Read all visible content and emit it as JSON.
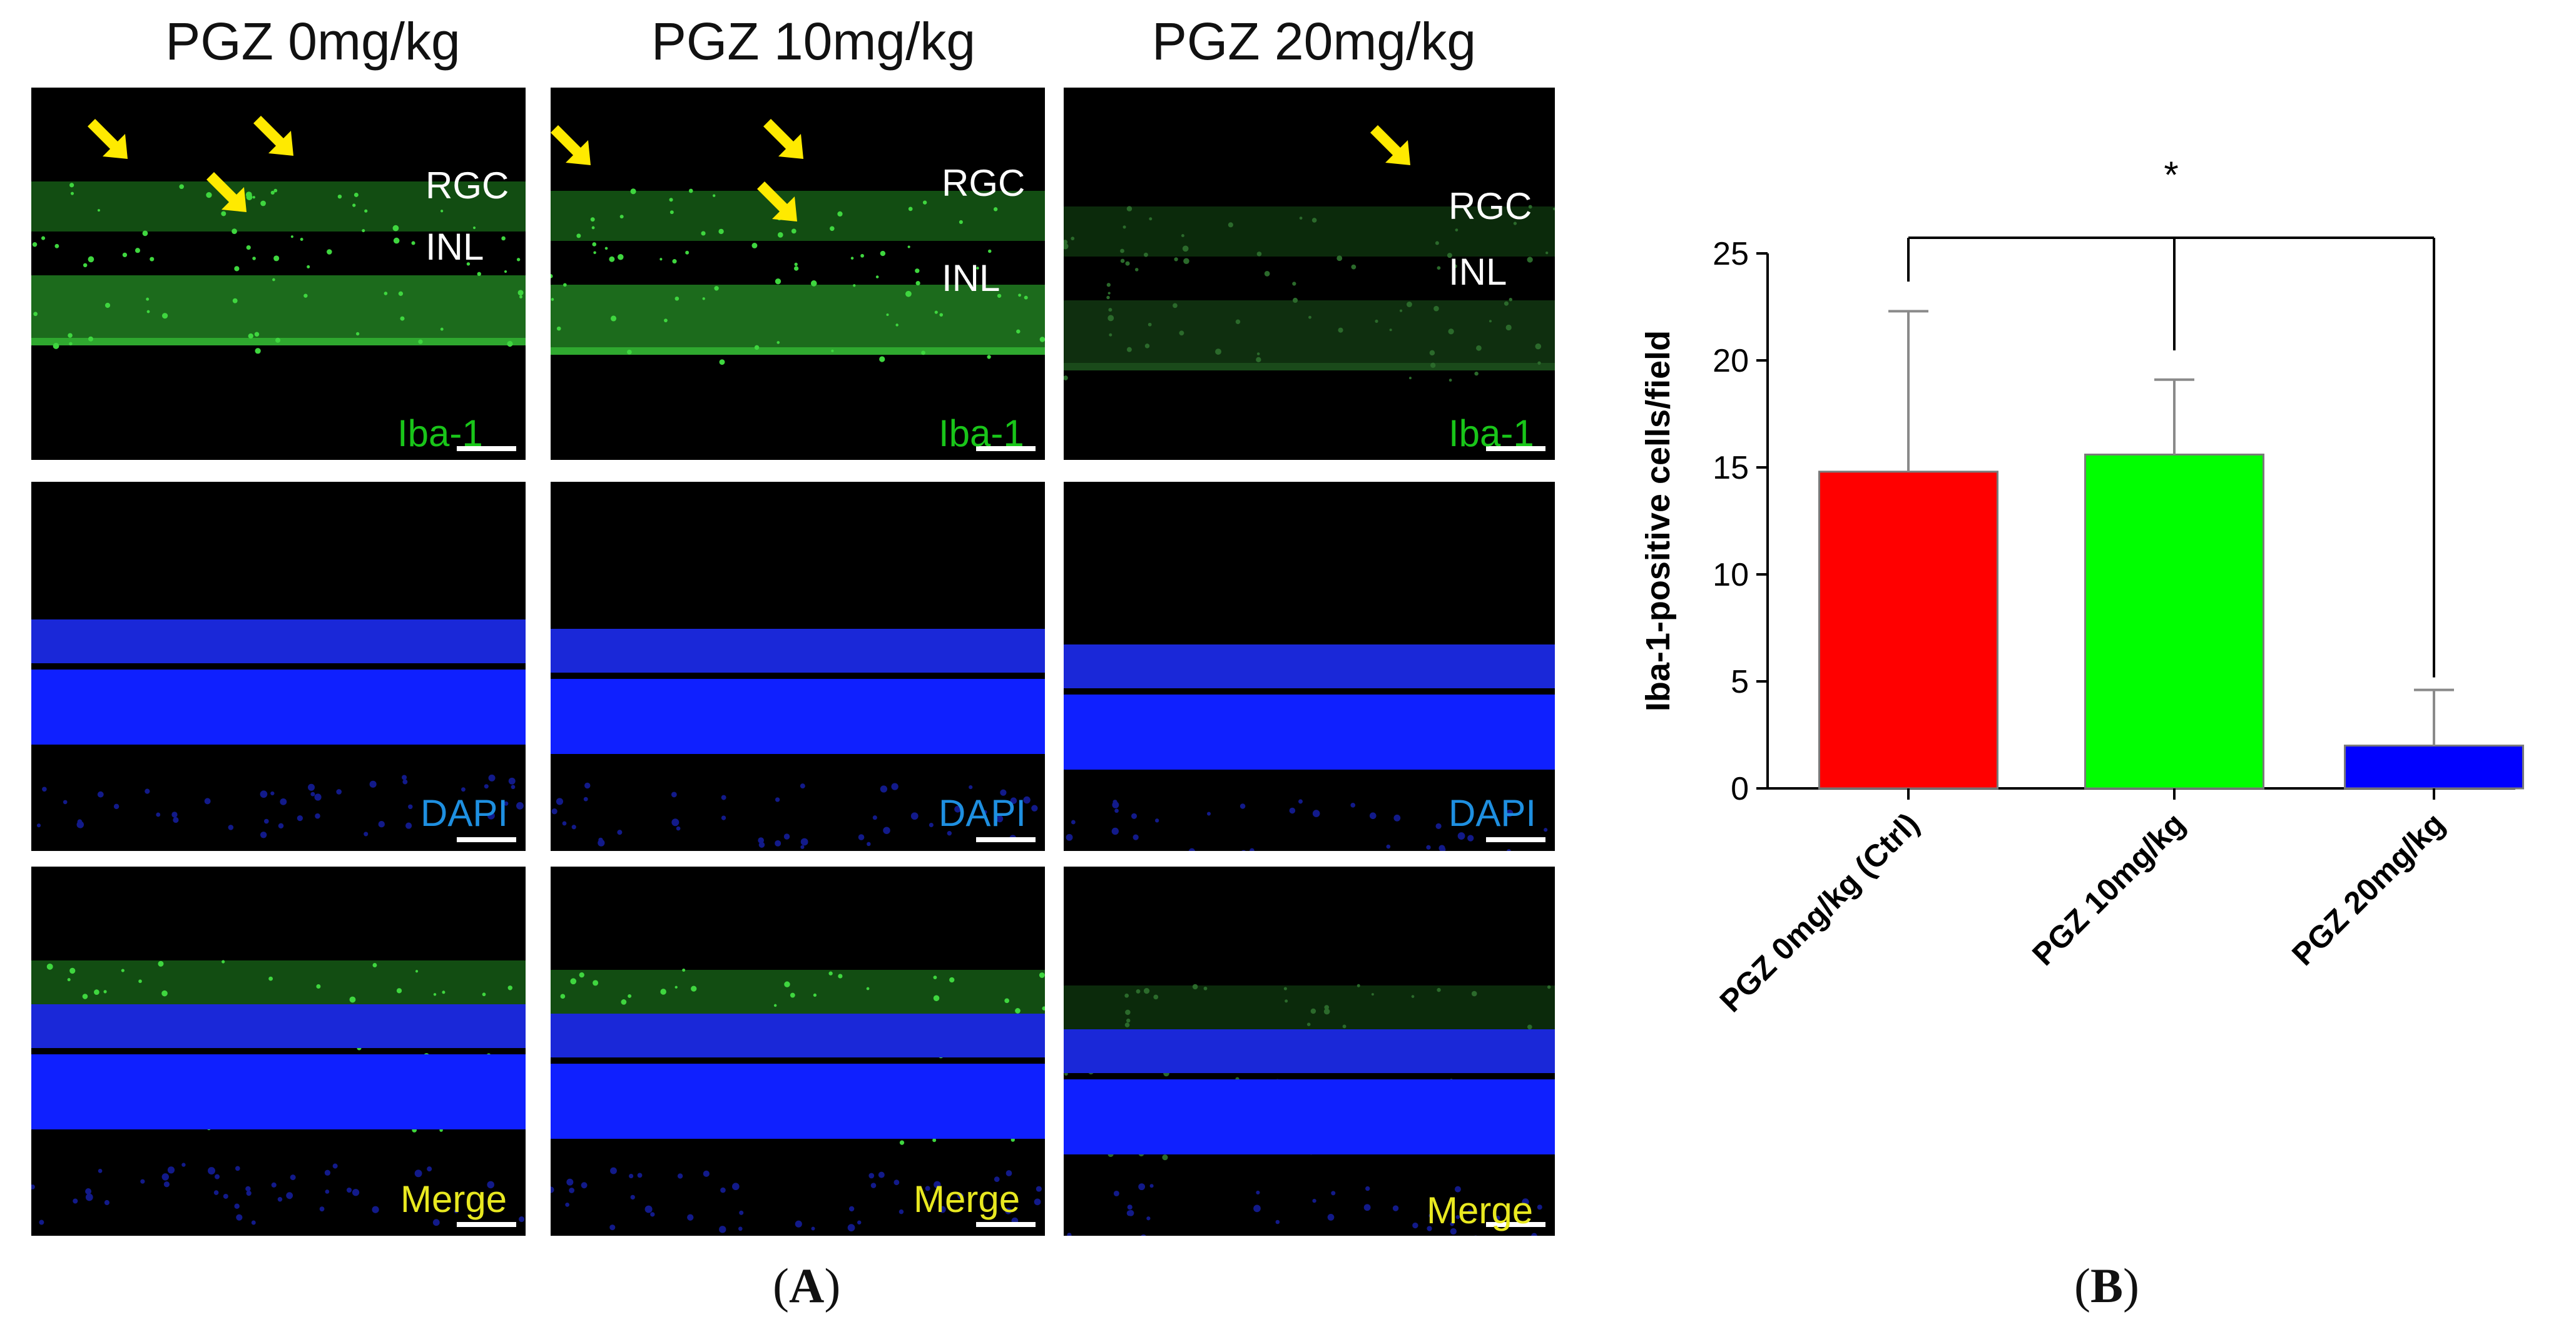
{
  "panel_a": {
    "columns": [
      "PGZ 0mg/kg",
      "PGZ 10mg/kg",
      "PGZ 20mg/kg"
    ],
    "rows": [
      {
        "stain": "Iba-1",
        "color": "#19c519"
      },
      {
        "stain": "DAPI",
        "color": "#1e8fe0"
      },
      {
        "stain": "Merge",
        "color": "#e8e820"
      }
    ],
    "layer_labels": {
      "rgc": "RGC",
      "inl": "INL"
    },
    "figure_label": "A"
  },
  "panel_b": {
    "figure_label": "B"
  },
  "chart_data": {
    "type": "bar",
    "categories": [
      "PGZ 0mg/kg (Ctrl)",
      "PGZ 10mg/kg",
      "PGZ 20mg/kg"
    ],
    "values": [
      14.8,
      15.6,
      2.0
    ],
    "errors": [
      7.5,
      3.5,
      2.6
    ],
    "colors": [
      "#ff0000",
      "#00ff00",
      "#0000ff"
    ],
    "ylabel": "Iba-1-positive cells/field",
    "xlabel": "",
    "ylim": [
      0,
      25
    ],
    "yticks": [
      0,
      5,
      10,
      15,
      20,
      25
    ],
    "significance": {
      "label": "*",
      "comparison": [
        "PGZ 0mg/kg (Ctrl)",
        "PGZ 20mg/kg"
      ]
    }
  }
}
